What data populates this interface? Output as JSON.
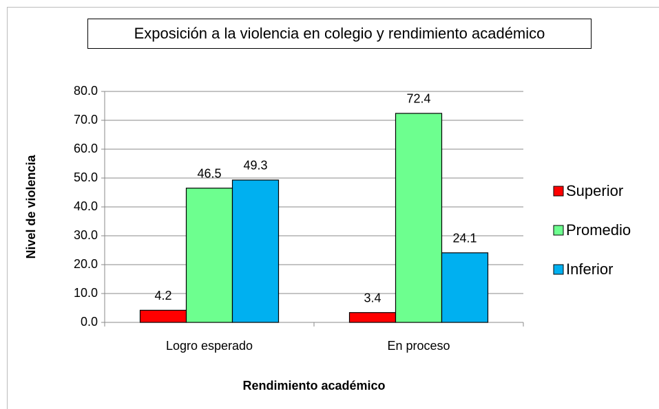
{
  "chart_data": {
    "type": "bar",
    "title": "Exposición a la violencia en colegio y rendimiento académico",
    "x_label": "Rendimiento académico",
    "y_label": "Nivel de violencia",
    "categories": [
      "Logro esperado",
      "En proceso"
    ],
    "series": [
      {
        "name": "Superior",
        "color": "#ff0000",
        "values": [
          4.2,
          3.4
        ]
      },
      {
        "name": "Promedio",
        "color": "#6dff8f",
        "values": [
          46.5,
          72.4
        ]
      },
      {
        "name": "Inferior",
        "color": "#00b0f0",
        "values": [
          49.3,
          24.1
        ]
      }
    ],
    "ylim": [
      0,
      80
    ],
    "yticks": [
      {
        "value": 0,
        "label": "0.0"
      },
      {
        "value": 10,
        "label": "10.0"
      },
      {
        "value": 20,
        "label": "20.0"
      },
      {
        "value": 30,
        "label": "30.0"
      },
      {
        "value": 40,
        "label": "40.0"
      },
      {
        "value": 50,
        "label": "50.0"
      },
      {
        "value": 60,
        "label": "60.0"
      },
      {
        "value": 70,
        "label": "70.0"
      },
      {
        "value": 80,
        "label": "80.0"
      }
    ],
    "grid": true,
    "legend": "right"
  }
}
